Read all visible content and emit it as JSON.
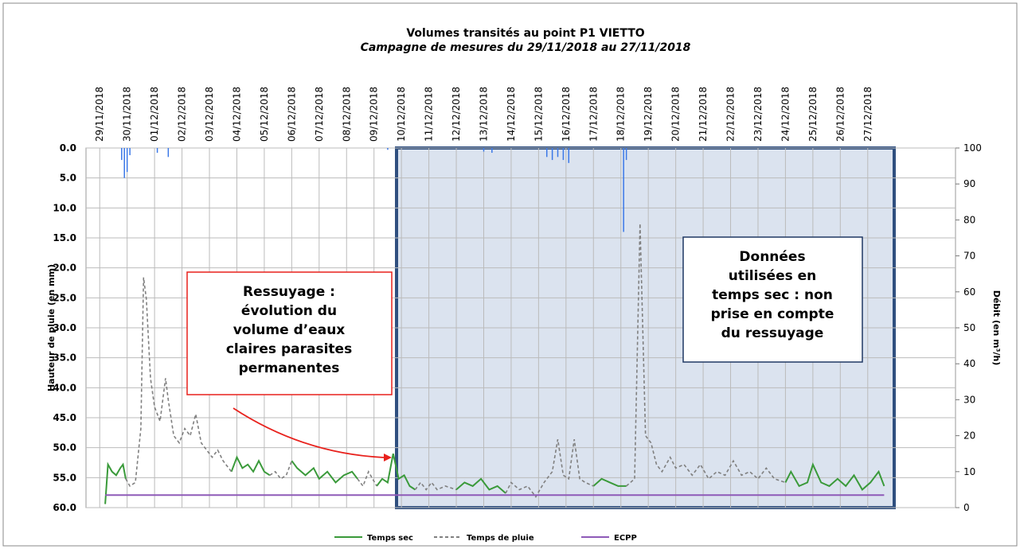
{
  "chart_data": {
    "type": "line",
    "title": "Volumes transités au point P1 VIETTO",
    "subtitle": "Campagne de mesures du 29/11/2018 au 27/11/2018",
    "ylabel": "Hauteur de pluie (en mm)",
    "y2label": "Débit (en m³/h)",
    "xlim": [
      -0.5,
      31.2
    ],
    "xticks": [
      {
        "value": 0,
        "label": "29/11/2018"
      },
      {
        "value": 1,
        "label": "30/11/2018"
      },
      {
        "value": 2,
        "label": "01/12/2018"
      },
      {
        "value": 3,
        "label": "02/12/2018"
      },
      {
        "value": 4,
        "label": "03/12/2018"
      },
      {
        "value": 5,
        "label": "04/12/2018"
      },
      {
        "value": 6,
        "label": "05/12/2018"
      },
      {
        "value": 7,
        "label": "06/12/2018"
      },
      {
        "value": 8,
        "label": "07/12/2018"
      },
      {
        "value": 9,
        "label": "08/12/2018"
      },
      {
        "value": 10,
        "label": "09/12/2018"
      },
      {
        "value": 11,
        "label": "10/12/2018"
      },
      {
        "value": 12,
        "label": "11/12/2018"
      },
      {
        "value": 13,
        "label": "12/12/2018"
      },
      {
        "value": 14,
        "label": "13/12/2018"
      },
      {
        "value": 15,
        "label": "14/12/2018"
      },
      {
        "value": 16,
        "label": "15/12/2018"
      },
      {
        "value": 17,
        "label": "16/12/2018"
      },
      {
        "value": 18,
        "label": "17/12/2018"
      },
      {
        "value": 19,
        "label": "18/12/2018"
      },
      {
        "value": 20,
        "label": "19/12/2018"
      },
      {
        "value": 21,
        "label": "20/12/2018"
      },
      {
        "value": 22,
        "label": "21/12/2018"
      },
      {
        "value": 23,
        "label": "22/12/2018"
      },
      {
        "value": 24,
        "label": "23/12/2018"
      },
      {
        "value": 25,
        "label": "24/12/2018"
      },
      {
        "value": 26,
        "label": "25/12/2018"
      },
      {
        "value": 27,
        "label": "26/12/2018"
      },
      {
        "value": 28,
        "label": "27/12/2018"
      }
    ],
    "ylim": [
      0,
      60
    ],
    "y_inverted": true,
    "yticks": [
      {
        "value": 0,
        "label": "0.0"
      },
      {
        "value": 5,
        "label": "5.0"
      },
      {
        "value": 10,
        "label": "10.0"
      },
      {
        "value": 15,
        "label": "15.0"
      },
      {
        "value": 20,
        "label": "20.0"
      },
      {
        "value": 25,
        "label": "25.0"
      },
      {
        "value": 30,
        "label": "30.0"
      },
      {
        "value": 35,
        "label": "35.0"
      },
      {
        "value": 40,
        "label": "40.0"
      },
      {
        "value": 45,
        "label": "45.0"
      },
      {
        "value": 50,
        "label": "50.0"
      },
      {
        "value": 55,
        "label": "55.0"
      },
      {
        "value": 60,
        "label": "60.0"
      }
    ],
    "y2lim": [
      0,
      100
    ],
    "y2ticks": [
      0,
      10,
      20,
      30,
      40,
      50,
      60,
      70,
      80,
      90,
      100
    ],
    "grid": true,
    "rain": {
      "color": "#3b78e7",
      "x": [
        0.8,
        0.9,
        1.0,
        1.1,
        2.1,
        2.5,
        10.5,
        14.0,
        14.3,
        16.3,
        16.5,
        16.7,
        16.9,
        17.1,
        19.1,
        19.2
      ],
      "values": [
        2,
        5,
        4,
        1.2,
        0.8,
        1.5,
        0.3,
        0.6,
        0.8,
        1.5,
        2,
        1.5,
        2,
        2.5,
        14,
        2
      ]
    },
    "series": [
      {
        "name": "Temps sec",
        "color": "#3a9a3a",
        "dash": false,
        "axis": "y2",
        "x": [
          0.2,
          0.3,
          0.45,
          0.6,
          0.75,
          0.85,
          0.95,
          1.5,
          4.8,
          5.0,
          5.2,
          5.4,
          5.6,
          5.8,
          6.0,
          6.2,
          6.5,
          7.0,
          7.2,
          7.5,
          7.8,
          8.0,
          8.3,
          8.6,
          8.9,
          9.2,
          9.4,
          9.7,
          10.1,
          10.3,
          10.5,
          10.7,
          10.9,
          11.1,
          11.3,
          11.5,
          12,
          13.0,
          13.3,
          13.6,
          13.9,
          14.2,
          14.5,
          14.8,
          15.5,
          18.0,
          18.3,
          18.6,
          18.9,
          19.2,
          20,
          25.0,
          25.2,
          25.5,
          25.8,
          26.0,
          26.3,
          26.6,
          26.9,
          27.2,
          27.5,
          27.8,
          28.1,
          28.4,
          28.6
        ],
        "values": [
          1,
          12,
          10,
          9,
          11,
          12,
          8,
          null,
          10,
          14,
          11,
          12,
          10,
          13,
          10,
          9,
          null,
          13,
          11,
          9,
          11,
          8,
          10,
          7,
          9,
          10,
          8,
          null,
          6,
          8,
          7,
          15,
          8,
          9,
          6,
          5,
          null,
          5,
          7,
          6,
          8,
          5,
          6,
          4,
          null,
          6,
          8,
          7,
          6,
          6,
          null,
          7,
          10,
          6,
          7,
          12,
          7,
          6,
          8,
          6,
          9,
          5,
          7,
          10,
          6
        ]
      },
      {
        "name": "Temps de pluie",
        "color": "#808080",
        "dash": true,
        "axis": "y2",
        "x": [
          0.95,
          1.1,
          1.3,
          1.5,
          1.6,
          1.7,
          1.85,
          2.0,
          2.2,
          2.4,
          2.5,
          2.7,
          2.9,
          3.1,
          3.3,
          3.5,
          3.7,
          3.9,
          4.1,
          4.3,
          4.5,
          4.8,
          5.5,
          6.2,
          6.4,
          6.6,
          6.8,
          7.0,
          7.5,
          9.4,
          9.6,
          9.8,
          10.1,
          10.5,
          11.5,
          11.7,
          11.9,
          12.1,
          12.3,
          12.6,
          13.0,
          13.5,
          14.8,
          15.0,
          15.3,
          15.6,
          15.9,
          16.2,
          16.5,
          16.7,
          16.9,
          17.1,
          17.3,
          17.5,
          17.7,
          18.0,
          18.5,
          19.2,
          19.5,
          19.7,
          19.9,
          20.1,
          20.3,
          20.5,
          20.8,
          21.0,
          21.3,
          21.6,
          21.9,
          22.2,
          22.5,
          22.8,
          23.1,
          23.4,
          23.7,
          24.0,
          24.3,
          24.6,
          25.0
        ],
        "values": [
          8,
          6,
          7,
          22,
          64,
          58,
          36,
          28,
          24,
          36,
          30,
          20,
          18,
          22,
          20,
          26,
          18,
          16,
          14,
          16,
          13,
          10,
          null,
          9,
          10,
          8,
          9,
          13,
          null,
          8,
          6,
          10,
          6,
          null,
          5,
          7,
          5,
          7,
          5,
          6,
          5,
          null,
          4,
          7,
          5,
          6,
          3,
          7,
          10,
          19,
          9,
          8,
          19,
          8,
          7,
          6,
          null,
          6,
          8,
          79,
          20,
          18,
          12,
          10,
          14,
          11,
          12,
          9,
          12,
          8,
          10,
          9,
          13,
          9,
          10,
          8,
          11,
          8,
          7
        ]
      },
      {
        "name": "ECPP",
        "color": "#8e5ab8",
        "dash": false,
        "axis": "y2",
        "x": [
          0.2,
          28.6
        ],
        "values": [
          3.5,
          3.5
        ]
      }
    ],
    "annotations": [
      {
        "text": [
          "Ressuyage :",
          "évolution du",
          "volume d’eaux",
          "claires parasites",
          "permanentes"
        ],
        "color": "#e8211c"
      },
      {
        "text": [
          "Données",
          "utilisées en",
          "temps sec : non",
          "prise en compte",
          "du ressuyage"
        ],
        "color": "#1f3864"
      }
    ]
  }
}
